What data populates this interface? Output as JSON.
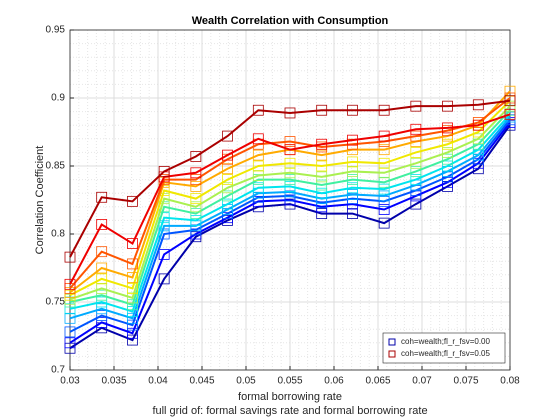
{
  "chart_data": {
    "type": "line",
    "title": "Wealth Correlation with Consumption",
    "xlabel": "formal borrowing rate",
    "xlabel2": "full grid of: formal savings rate and formal borrowing rate",
    "ylabel": "Correlation Coefficient",
    "x": [
      0.03,
      0.0336,
      0.0371,
      0.0407,
      0.0443,
      0.0479,
      0.0514,
      0.055,
      0.0586,
      0.0621,
      0.0657,
      0.0693,
      0.0729,
      0.0764,
      0.08
    ],
    "xlim": [
      0.03,
      0.08
    ],
    "xticks": [
      0.03,
      0.035,
      0.04,
      0.045,
      0.05,
      0.055,
      0.06,
      0.065,
      0.07,
      0.075,
      0.08
    ],
    "ylim": [
      0.7,
      0.95
    ],
    "yticks": [
      0.7,
      0.75,
      0.8,
      0.85,
      0.9,
      0.95
    ],
    "grid": true,
    "minor_grid": true,
    "legend": "southeast",
    "marker": "square",
    "series": [
      {
        "name": "coh=wealth;fl_r_fsv=0.00",
        "color": "#0000aa",
        "values": [
          0.716,
          0.731,
          0.722,
          0.767,
          0.798,
          0.81,
          0.82,
          0.822,
          0.815,
          0.815,
          0.808,
          0.822,
          0.835,
          0.848,
          0.88
        ]
      },
      {
        "color": "#0000ff",
        "values": [
          0.72,
          0.735,
          0.727,
          0.785,
          0.8,
          0.812,
          0.824,
          0.825,
          0.82,
          0.822,
          0.818,
          0.828,
          0.838,
          0.852,
          0.882
        ]
      },
      {
        "color": "#0055ff",
        "values": [
          0.728,
          0.74,
          0.733,
          0.8,
          0.803,
          0.815,
          0.827,
          0.828,
          0.823,
          0.826,
          0.824,
          0.832,
          0.842,
          0.855,
          0.884
        ]
      },
      {
        "color": "#00aaff",
        "values": [
          0.738,
          0.745,
          0.738,
          0.806,
          0.806,
          0.818,
          0.83,
          0.831,
          0.826,
          0.829,
          0.828,
          0.836,
          0.846,
          0.858,
          0.886
        ]
      },
      {
        "color": "#00e5ee",
        "values": [
          0.745,
          0.75,
          0.743,
          0.812,
          0.81,
          0.822,
          0.834,
          0.835,
          0.83,
          0.834,
          0.833,
          0.84,
          0.85,
          0.862,
          0.888
        ]
      },
      {
        "color": "#40f0a0",
        "values": [
          0.75,
          0.755,
          0.748,
          0.82,
          0.815,
          0.828,
          0.84,
          0.84,
          0.836,
          0.84,
          0.838,
          0.846,
          0.855,
          0.866,
          0.891
        ]
      },
      {
        "color": "#aaf050",
        "values": [
          0.752,
          0.76,
          0.753,
          0.826,
          0.82,
          0.834,
          0.843,
          0.845,
          0.842,
          0.846,
          0.845,
          0.852,
          0.86,
          0.87,
          0.894
        ]
      },
      {
        "color": "#f0e800",
        "values": [
          0.755,
          0.767,
          0.76,
          0.832,
          0.826,
          0.84,
          0.85,
          0.852,
          0.85,
          0.853,
          0.852,
          0.86,
          0.866,
          0.875,
          0.898
        ]
      },
      {
        "color": "#ffaa00",
        "values": [
          0.757,
          0.775,
          0.768,
          0.838,
          0.835,
          0.848,
          0.858,
          0.862,
          0.858,
          0.862,
          0.862,
          0.868,
          0.872,
          0.88,
          0.905
        ]
      },
      {
        "color": "#ff5500",
        "values": [
          0.76,
          0.787,
          0.778,
          0.84,
          0.84,
          0.855,
          0.866,
          0.868,
          0.864,
          0.866,
          0.868,
          0.872,
          0.876,
          0.882,
          0.9
        ]
      },
      {
        "color": "#ee0000",
        "values": [
          0.763,
          0.807,
          0.793,
          0.842,
          0.845,
          0.858,
          0.87,
          0.862,
          0.866,
          0.869,
          0.872,
          0.877,
          0.878,
          0.88,
          0.888
        ]
      },
      {
        "name": "coh=wealth;fl_r_fsv=0.05",
        "color": "#aa0000",
        "values": [
          0.783,
          0.827,
          0.824,
          0.846,
          0.857,
          0.872,
          0.891,
          0.889,
          0.891,
          0.891,
          0.891,
          0.894,
          0.894,
          0.895,
          0.898
        ]
      }
    ]
  }
}
